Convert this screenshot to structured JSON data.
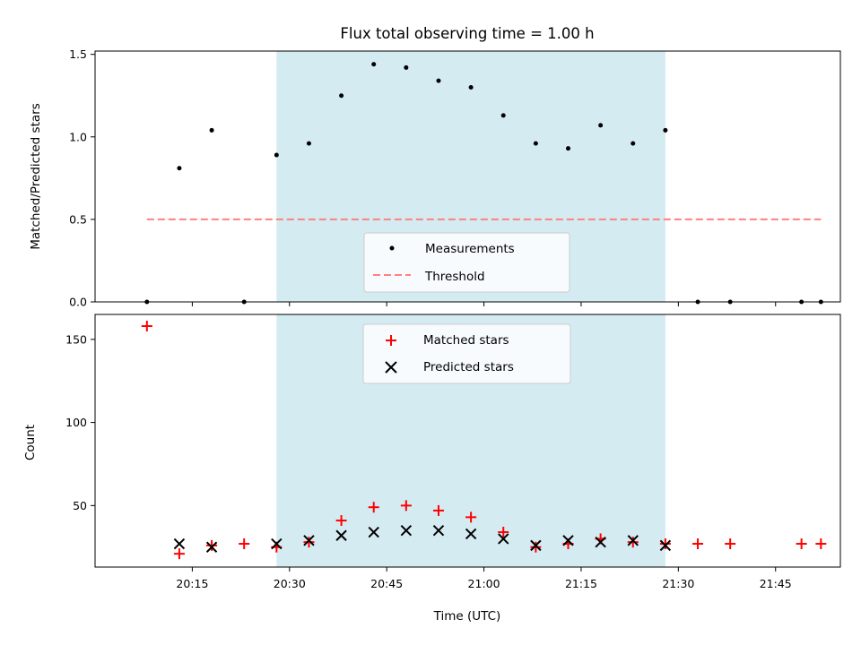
{
  "chart_data": [
    {
      "type": "scatter",
      "panel": "top",
      "title": "Flux total observing time = 1.00 h",
      "xlabel": "",
      "ylabel": "Matched/Predicted stars",
      "xlim": [
        "20:00",
        "21:55"
      ],
      "ylim": [
        0,
        1.52
      ],
      "yticks": [
        0,
        0.5,
        1.0,
        1.5
      ],
      "ytick_labels": [
        "0.0",
        "0.5",
        "1.0",
        "1.5"
      ],
      "highlight_span": {
        "x_start": "20:28",
        "x_end": "21:28",
        "color": "#add8e6"
      },
      "legend": {
        "placement": "lower center",
        "entries": [
          "Measurements",
          "Threshold"
        ]
      },
      "series": [
        {
          "name": "Measurements",
          "kind": "points",
          "color": "#000000",
          "x": [
            "20:08",
            "20:13",
            "20:18",
            "20:23",
            "20:28",
            "20:33",
            "20:38",
            "20:43",
            "20:48",
            "20:53",
            "20:58",
            "21:03",
            "21:08",
            "21:13",
            "21:18",
            "21:23",
            "21:28",
            "21:33",
            "21:38",
            "21:49",
            "21:52"
          ],
          "y": [
            0,
            0.81,
            1.04,
            0,
            0.89,
            0.96,
            1.25,
            1.44,
            1.42,
            1.34,
            1.3,
            1.13,
            0.96,
            0.93,
            1.07,
            0.96,
            1.04,
            0,
            0,
            0,
            0
          ]
        },
        {
          "name": "Threshold",
          "kind": "dashed-line",
          "color": "#ff8080",
          "x": [
            "20:08",
            "21:52"
          ],
          "y": [
            0.5,
            0.5
          ]
        }
      ]
    },
    {
      "type": "scatter",
      "panel": "bottom",
      "title": "",
      "xlabel": "Time (UTC)",
      "ylabel": "Count",
      "xlim": [
        "20:00",
        "21:55"
      ],
      "ylim": [
        13,
        165
      ],
      "yticks": [
        50,
        100,
        150
      ],
      "ytick_labels": [
        "50",
        "100",
        "150"
      ],
      "xticks": [
        "20:15",
        "20:30",
        "20:45",
        "21:00",
        "21:15",
        "21:30",
        "21:45"
      ],
      "highlight_span": {
        "x_start": "20:28",
        "x_end": "21:28",
        "color": "#add8e6"
      },
      "legend": {
        "placement": "upper center",
        "entries": [
          "Matched stars",
          "Predicted stars"
        ]
      },
      "series": [
        {
          "name": "Matched stars",
          "marker": "+",
          "color": "#ff0000",
          "x": [
            "20:08",
            "20:13",
            "20:18",
            "20:23",
            "20:28",
            "20:33",
            "20:38",
            "20:43",
            "20:48",
            "20:53",
            "20:58",
            "21:03",
            "21:08",
            "21:13",
            "21:18",
            "21:23",
            "21:28",
            "21:33",
            "21:38",
            "21:49",
            "21:52"
          ],
          "y": [
            158,
            21,
            26,
            27,
            25,
            28,
            41,
            49,
            50,
            47,
            43,
            34,
            25,
            27,
            30,
            28,
            27,
            27,
            27,
            27,
            27
          ]
        },
        {
          "name": "Predicted stars",
          "marker": "x",
          "color": "#000000",
          "x": [
            "20:13",
            "20:18",
            "20:28",
            "20:33",
            "20:38",
            "20:43",
            "20:48",
            "20:53",
            "20:58",
            "21:03",
            "21:08",
            "21:13",
            "21:18",
            "21:23",
            "21:28"
          ],
          "y": [
            27,
            25,
            27,
            29,
            32,
            34,
            35,
            35,
            33,
            30,
            26,
            29,
            28,
            29,
            26
          ]
        }
      ]
    }
  ]
}
